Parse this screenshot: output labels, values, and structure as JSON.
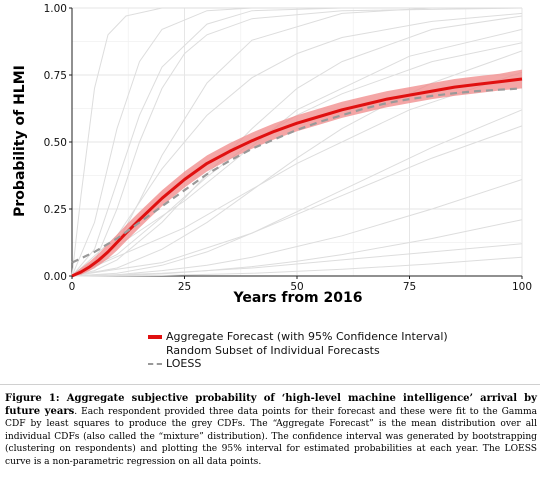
{
  "chart_data": {
    "type": "line",
    "xlabel": "Years from 2016",
    "ylabel": "Probability of HLMI",
    "xlim": [
      0,
      100
    ],
    "ylim": [
      0,
      1
    ],
    "x_ticks": [
      "0",
      "25",
      "50",
      "75",
      "100"
    ],
    "y_ticks": [
      "0.00",
      "0.25",
      "0.50",
      "0.75",
      "1.00"
    ],
    "grid": true,
    "legend_position": "bottom",
    "series": [
      {
        "name": "Aggregate Forecast (with 95% Confidence Interval)",
        "color": "#e01010",
        "x": [
          0,
          2,
          4,
          6,
          8,
          10,
          12,
          15,
          20,
          25,
          30,
          35,
          40,
          45,
          50,
          55,
          60,
          65,
          70,
          75,
          80,
          85,
          90,
          95,
          100
        ],
        "y": [
          0.0,
          0.015,
          0.035,
          0.06,
          0.09,
          0.125,
          0.16,
          0.21,
          0.29,
          0.36,
          0.42,
          0.465,
          0.505,
          0.54,
          0.57,
          0.595,
          0.62,
          0.64,
          0.66,
          0.675,
          0.69,
          0.705,
          0.715,
          0.725,
          0.735
        ],
        "ci_lower": [
          0.0,
          0.005,
          0.02,
          0.04,
          0.065,
          0.095,
          0.13,
          0.18,
          0.26,
          0.33,
          0.39,
          0.435,
          0.475,
          0.51,
          0.54,
          0.565,
          0.59,
          0.61,
          0.63,
          0.645,
          0.66,
          0.672,
          0.682,
          0.692,
          0.7
        ],
        "ci_upper": [
          0.005,
          0.03,
          0.055,
          0.085,
          0.12,
          0.155,
          0.19,
          0.24,
          0.32,
          0.39,
          0.45,
          0.495,
          0.535,
          0.57,
          0.6,
          0.625,
          0.65,
          0.67,
          0.69,
          0.705,
          0.72,
          0.735,
          0.745,
          0.755,
          0.77
        ]
      },
      {
        "name": "LOESS",
        "color": "#999999",
        "x": [
          0,
          5,
          10,
          15,
          20,
          25,
          30,
          35,
          40,
          45,
          50,
          55,
          60,
          65,
          70,
          75,
          80,
          85,
          90,
          95,
          100
        ],
        "y": [
          0.05,
          0.09,
          0.14,
          0.2,
          0.26,
          0.32,
          0.38,
          0.43,
          0.475,
          0.51,
          0.545,
          0.575,
          0.6,
          0.625,
          0.645,
          0.66,
          0.672,
          0.682,
          0.69,
          0.695,
          0.7
        ]
      },
      {
        "name": "Random Subset of Individual Forecasts",
        "color": "#dddddd",
        "curves": [
          {
            "x": [
              0,
              5,
              10,
              15,
              20,
              30,
              40,
              60,
              80,
              100
            ],
            "y": [
              0.0,
              0.2,
              0.55,
              0.8,
              0.92,
              0.99,
              1.0,
              1.0,
              1.0,
              1.0
            ]
          },
          {
            "x": [
              0,
              5,
              10,
              15,
              20,
              30,
              40,
              60,
              80,
              100
            ],
            "y": [
              0.0,
              0.1,
              0.35,
              0.6,
              0.78,
              0.94,
              0.99,
              1.0,
              1.0,
              1.0
            ]
          },
          {
            "x": [
              0,
              5,
              10,
              15,
              20,
              30,
              40,
              60,
              80,
              100
            ],
            "y": [
              0.0,
              0.03,
              0.12,
              0.28,
              0.45,
              0.72,
              0.88,
              0.98,
              1.0,
              1.0
            ]
          },
          {
            "x": [
              0,
              5,
              10,
              20,
              30,
              40,
              50,
              60,
              80,
              100
            ],
            "y": [
              0.0,
              0.02,
              0.06,
              0.2,
              0.38,
              0.55,
              0.7,
              0.8,
              0.92,
              0.97
            ]
          },
          {
            "x": [
              0,
              10,
              20,
              30,
              40,
              50,
              60,
              70,
              80,
              100
            ],
            "y": [
              0.0,
              0.03,
              0.1,
              0.2,
              0.32,
              0.44,
              0.55,
              0.64,
              0.72,
              0.84
            ]
          },
          {
            "x": [
              0,
              10,
              20,
              30,
              40,
              50,
              60,
              70,
              80,
              100
            ],
            "y": [
              0.0,
              0.01,
              0.04,
              0.09,
              0.16,
              0.24,
              0.32,
              0.4,
              0.48,
              0.62
            ]
          },
          {
            "x": [
              0,
              10,
              20,
              30,
              40,
              50,
              60,
              70,
              80,
              100
            ],
            "y": [
              0.0,
              0.005,
              0.02,
              0.04,
              0.07,
              0.11,
              0.15,
              0.2,
              0.25,
              0.36
            ]
          },
          {
            "x": [
              0,
              10,
              20,
              30,
              40,
              50,
              60,
              70,
              80,
              100
            ],
            "y": [
              0.0,
              0.002,
              0.008,
              0.02,
              0.035,
              0.055,
              0.08,
              0.11,
              0.14,
              0.21
            ]
          },
          {
            "x": [
              0,
              20,
              40,
              60,
              80,
              100
            ],
            "y": [
              0.0,
              0.01,
              0.03,
              0.06,
              0.09,
              0.12
            ]
          },
          {
            "x": [
              0,
              5,
              10,
              15,
              20,
              25,
              30,
              40,
              60,
              100
            ],
            "y": [
              0.0,
              0.05,
              0.25,
              0.5,
              0.7,
              0.83,
              0.9,
              0.96,
              0.99,
              1.0
            ]
          },
          {
            "x": [
              0,
              10,
              20,
              30,
              40,
              50,
              60,
              80,
              100
            ],
            "y": [
              0.0,
              0.15,
              0.4,
              0.6,
              0.74,
              0.83,
              0.89,
              0.95,
              0.98
            ]
          },
          {
            "x": [
              0,
              10,
              20,
              30,
              40,
              50,
              60,
              80,
              100
            ],
            "y": [
              0.0,
              0.08,
              0.22,
              0.37,
              0.5,
              0.6,
              0.68,
              0.8,
              0.87
            ]
          },
          {
            "x": [
              0,
              20,
              40,
              60,
              80,
              100
            ],
            "y": [
              0.0,
              0.05,
              0.16,
              0.3,
              0.44,
              0.56
            ]
          },
          {
            "x": [
              0,
              2,
              5,
              8,
              12,
              20,
              40,
              100
            ],
            "y": [
              0.0,
              0.3,
              0.7,
              0.9,
              0.97,
              1.0,
              1.0,
              1.0
            ]
          },
          {
            "x": [
              0,
              20,
              40,
              60,
              80,
              100
            ],
            "y": [
              0.0,
              0.002,
              0.01,
              0.025,
              0.045,
              0.07
            ]
          },
          {
            "x": [
              0,
              25,
              50,
              75,
              100
            ],
            "y": [
              0.0,
              0.18,
              0.42,
              0.62,
              0.76
            ]
          },
          {
            "x": [
              0,
              25,
              50,
              75,
              100
            ],
            "y": [
              0.0,
              0.28,
              0.62,
              0.82,
              0.92
            ]
          }
        ]
      }
    ]
  },
  "legend": {
    "items": [
      {
        "label": "Aggregate Forecast (with 95% Confidence Interval)"
      },
      {
        "label": "Random Subset of Individual Forecasts"
      },
      {
        "label": "LOESS"
      }
    ]
  },
  "caption": {
    "lead": "Figure 1:  Aggregate subjective probability of ‘high-level machine intelligence’ arrival by future years",
    "body": ". Each respondent provided three data points for their forecast and these were fit to the Gamma CDF by least squares to produce the grey CDFs. The “Aggregate Forecast” is the mean distribution over all individual CDFs (also called the “mixture” distribution). The confidence interval was generated by bootstrapping (clustering on respondents) and plotting the 95% interval for estimated probabilities at each year. The LOESS curve is a non-parametric regression on all data points."
  }
}
